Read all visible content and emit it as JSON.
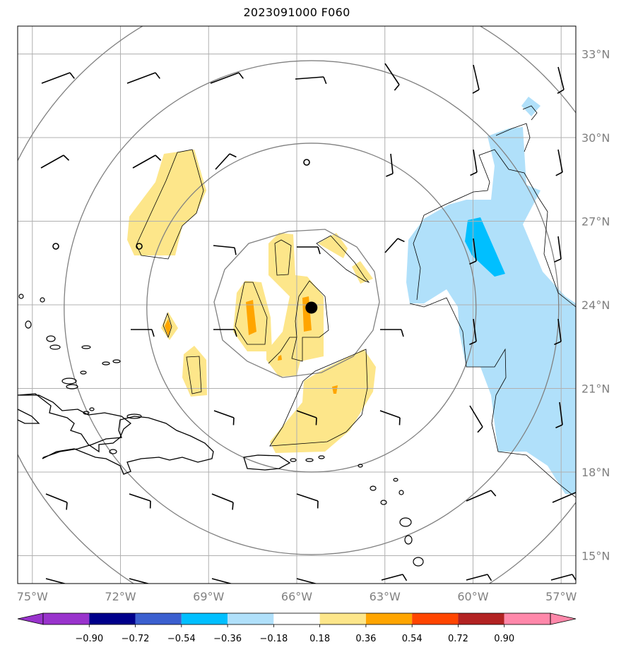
{
  "title": "2023091000 F060",
  "map": {
    "lon_range": [
      -75.5,
      -56.5
    ],
    "lat_range": [
      14,
      34
    ],
    "lon_ticks": [
      -75,
      -72,
      -69,
      -66,
      -63,
      -60,
      -57
    ],
    "lat_ticks": [
      15,
      18,
      21,
      24,
      27,
      30,
      33
    ],
    "lon_labels": [
      "75°W",
      "72°W",
      "69°W",
      "66°W",
      "63°W",
      "60°W",
      "57°W"
    ],
    "lat_labels": [
      "15°N",
      "18°N",
      "21°N",
      "24°N",
      "27°N",
      "30°N",
      "33°N"
    ],
    "grid": true,
    "storm_center": {
      "lon": -65.5,
      "lat": 23.9
    },
    "range_ring_center": {
      "lon": -65.5,
      "lat": 23.9
    },
    "colors": {
      "grid": "#b0b0b0",
      "rings": "#808080",
      "coast": "#000000",
      "shade_pos_1": "#fde68a",
      "shade_pos_2": "#ffa500",
      "shade_neg_1": "#b0e0fa",
      "shade_neg_2": "#00bfff"
    }
  },
  "colorbar": {
    "labels": [
      "−0.90",
      "−0.72",
      "−0.54",
      "−0.36",
      "−0.18",
      "0.18",
      "0.36",
      "0.54",
      "0.72",
      "0.90"
    ],
    "colors": [
      "#9933cc",
      "#00008b",
      "#3b5fcf",
      "#00bfff",
      "#b0e0fa",
      "#ffffff",
      "#fde68a",
      "#ffa500",
      "#ff4500",
      "#b22222",
      "#ff88aa"
    ]
  }
}
